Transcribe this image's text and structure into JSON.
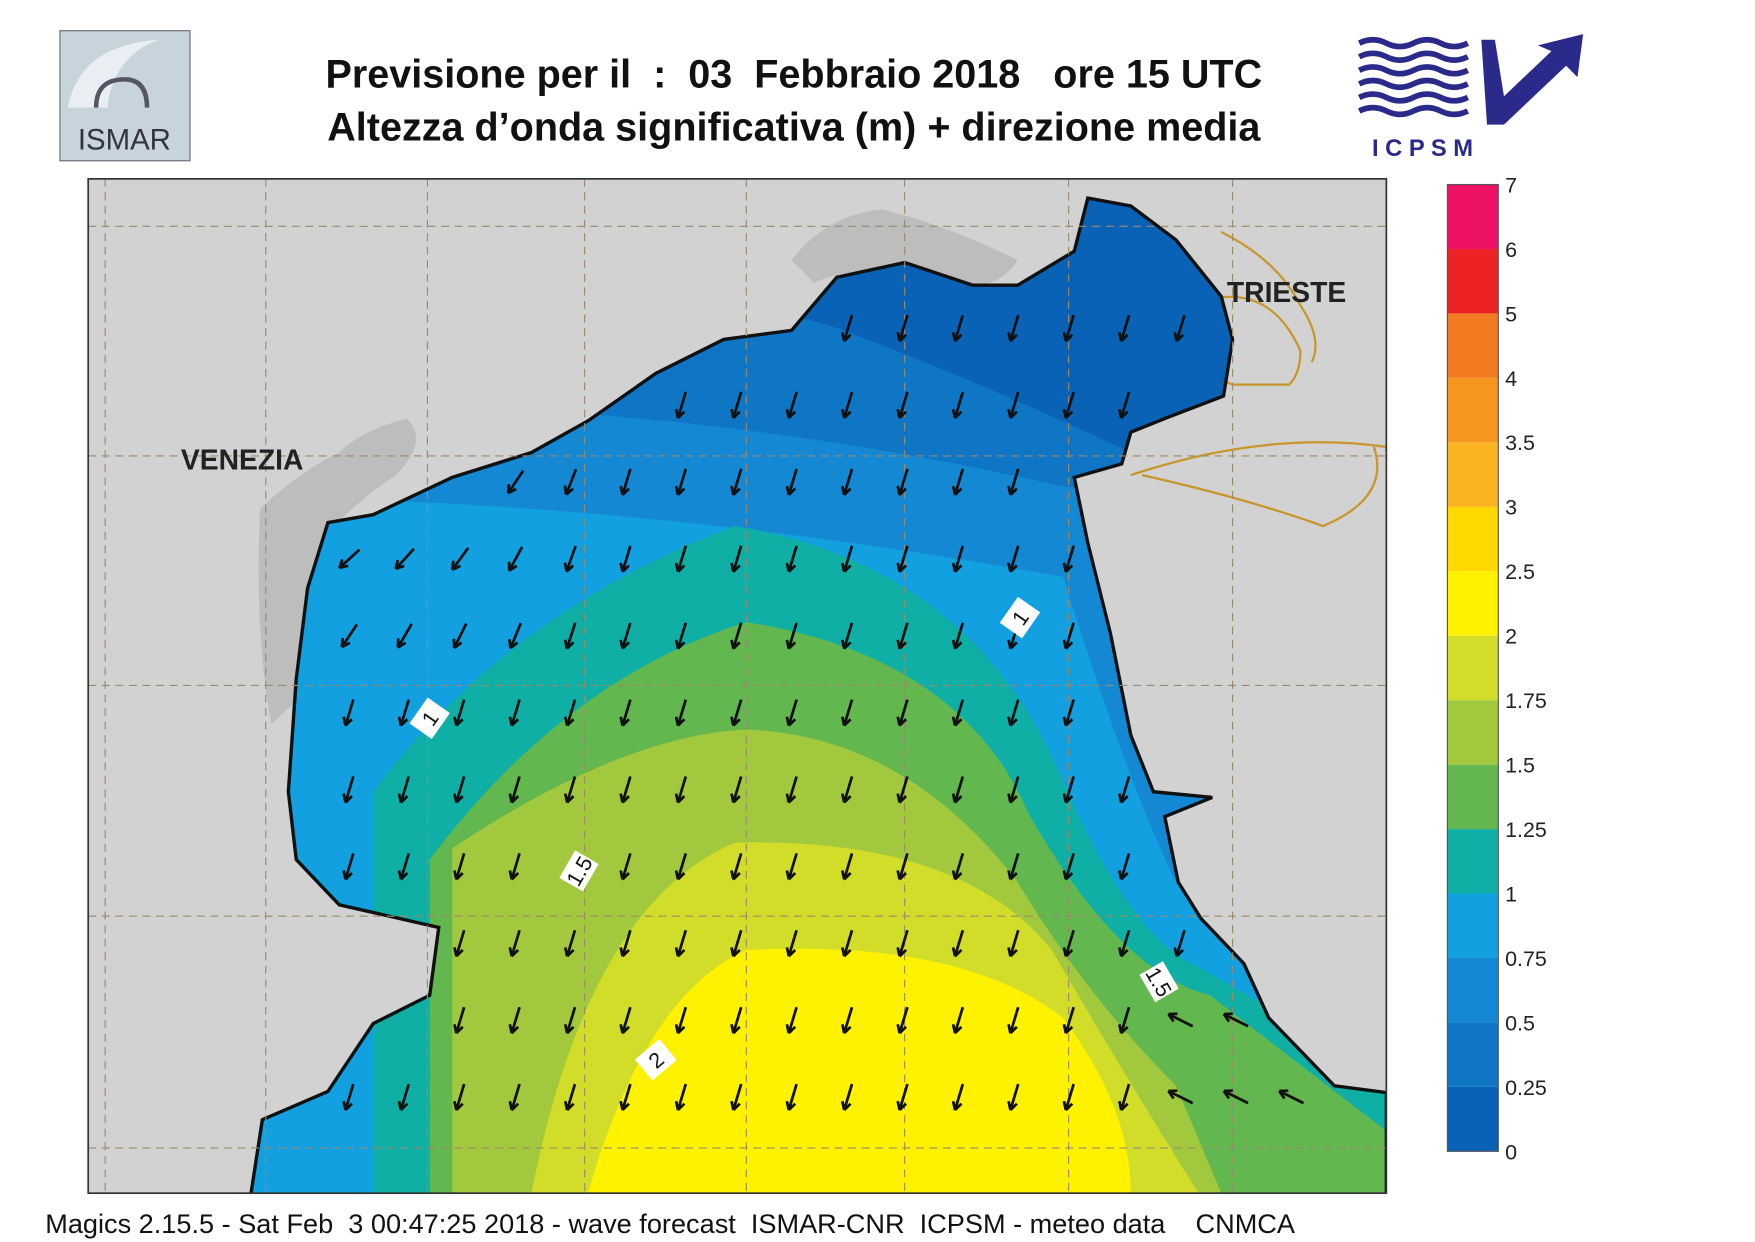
{
  "header": {
    "title_line1": "Previsione per il  :  03  Febbraio 2018   ore 15 UTC",
    "title_line2": "Altezza d’onda significativa (m) + direzione media"
  },
  "logos": {
    "left": "ISMAR",
    "right": "I C P S M"
  },
  "map": {
    "places": [
      "VENEZIA",
      "TRIESTE"
    ],
    "contour_labels": [
      "1",
      "1",
      "1.5",
      "2",
      "1.5"
    ]
  },
  "colorbar": {
    "levels": [
      0,
      0.25,
      0.5,
      0.75,
      1,
      1.25,
      1.5,
      1.75,
      2,
      2.5,
      3,
      3.5,
      4,
      5,
      6,
      7
    ],
    "colors": [
      "#0a62b6",
      "#0f76c6",
      "#1588d4",
      "#12a0e0",
      "#10afa6",
      "#62b74e",
      "#a2c93e",
      "#d2dd2a",
      "#fff200",
      "#ffd800",
      "#f9b321",
      "#f7961f",
      "#f27a21",
      "#ec2224",
      "#ec1165"
    ]
  },
  "footer": "Magics 2.15.5 - Sat Feb  3 00:47:25 2018 - wave forecast  ISMAR-CNR  ICPSM - meteo data    CNMCA"
}
